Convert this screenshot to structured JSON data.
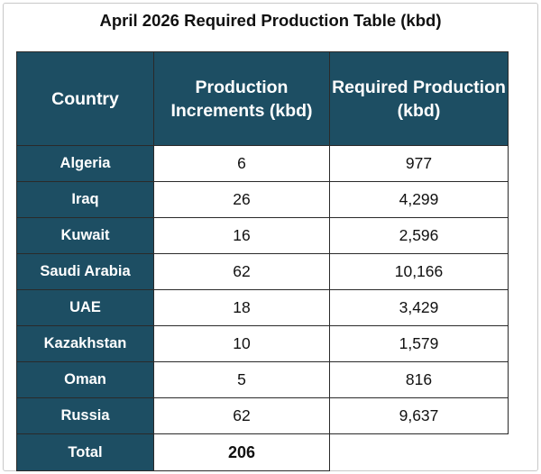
{
  "title": "April 2026 Required Production Table (kbd)",
  "headers": [
    "Country",
    "Production Increments (kbd)",
    "Required Production (kbd)"
  ],
  "rows": [
    {
      "country": "Algeria",
      "increment": "6",
      "required": "977"
    },
    {
      "country": "Iraq",
      "increment": "26",
      "required": "4,299"
    },
    {
      "country": "Kuwait",
      "increment": "16",
      "required": "2,596"
    },
    {
      "country": "Saudi Arabia",
      "increment": "62",
      "required": "10,166"
    },
    {
      "country": "UAE",
      "increment": "18",
      "required": "3,429"
    },
    {
      "country": "Kazakhstan",
      "increment": "10",
      "required": "1,579"
    },
    {
      "country": "Oman",
      "increment": "5",
      "required": "816"
    },
    {
      "country": "Russia",
      "increment": "62",
      "required": "9,637"
    }
  ],
  "total": {
    "label": "Total",
    "increment": "206"
  },
  "colors": {
    "header_bg": "#1d4e63",
    "header_text": "#ffffff"
  }
}
